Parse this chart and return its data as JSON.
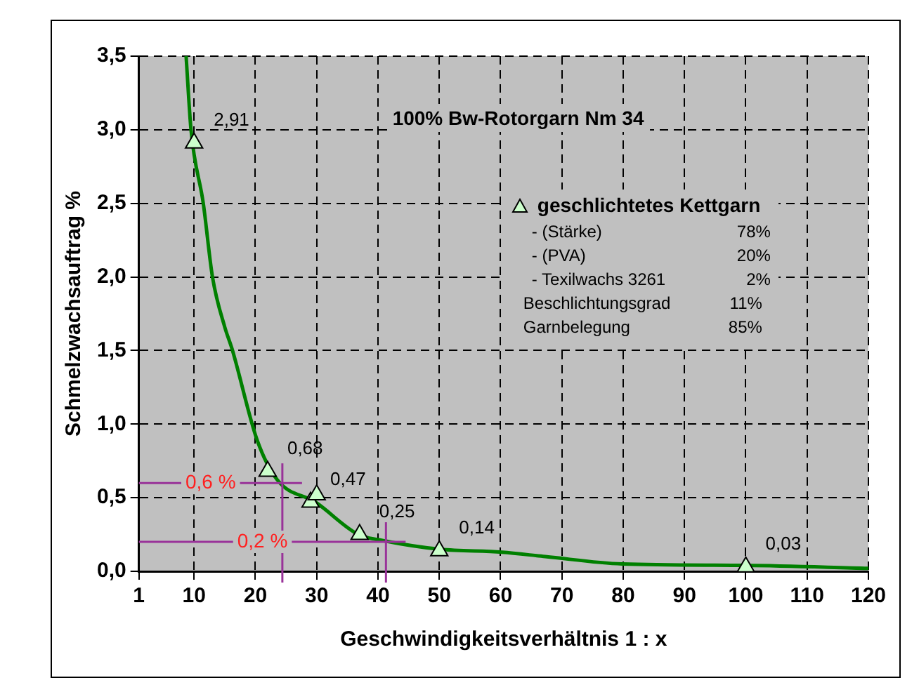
{
  "chart_data": {
    "type": "scatter",
    "title": "100% Bw-Rotorgarn Nm 34",
    "xlabel": "Geschwindigkeitsverhältnis 1 : x",
    "ylabel": "Schmelzwachsauftrag %",
    "xlim": [
      1,
      120
    ],
    "xticks": [
      1,
      10,
      20,
      30,
      40,
      50,
      60,
      70,
      80,
      90,
      100,
      110,
      120
    ],
    "ylim": [
      0,
      3.5
    ],
    "yticks": [
      {
        "value": 0,
        "label": "0,0"
      },
      {
        "value": 0.5,
        "label": "0,5"
      },
      {
        "value": 1,
        "label": "1,0"
      },
      {
        "value": 1.5,
        "label": "1,5"
      },
      {
        "value": 2,
        "label": "2,0"
      },
      {
        "value": 2.5,
        "label": "2,5"
      },
      {
        "value": 3,
        "label": "3,0"
      },
      {
        "value": 3.5,
        "label": "3,5"
      }
    ],
    "grid": true,
    "legend": "top right",
    "series": [
      {
        "name": "geschlichtetes Kettgarn",
        "type": "scatter",
        "marker": "triangle",
        "color": "#ccffcc",
        "x": [
          10,
          22,
          29,
          30,
          37,
          50,
          100
        ],
        "values": [
          2.91,
          0.68,
          0.47,
          0.52,
          0.25,
          0.14,
          0.03
        ],
        "value_labels": [
          "2,91",
          "0,68",
          "0,47",
          null,
          "0,25",
          "0,14",
          "0,03"
        ]
      },
      {
        "type": "line",
        "marker": "none",
        "color": "#008000",
        "x": [
          8.7,
          9.5,
          11.5,
          13,
          15,
          16.2,
          20.3,
          23.6,
          29.8,
          36.8,
          40.7,
          50.1,
          60.2,
          67.3,
          79.8,
          100,
          120
        ],
        "values": [
          3.5,
          3.0,
          2.5,
          2.0,
          1.66,
          1.51,
          0.89,
          0.62,
          0.47,
          0.25,
          0.21,
          0.15,
          0.13,
          0.1,
          0.05,
          0.04,
          0.02
        ]
      }
    ],
    "ref_lines": [
      {
        "axis": "y",
        "value": 0.6,
        "label": "0,6 %",
        "color": "#993399"
      },
      {
        "axis": "x",
        "value": 24.4,
        "color": "#993399"
      },
      {
        "axis": "y",
        "value": 0.2,
        "label": "0,2 %",
        "color": "#993399"
      },
      {
        "axis": "x",
        "value": 41.3,
        "color": "#993399"
      }
    ],
    "annotations": [
      "- (Stärke) 78%",
      "- (PVA) 20%",
      "- Texilwachs 3261 2%",
      "Beschlichtungsgrad 11%",
      "Garnbelegung 85%"
    ]
  }
}
